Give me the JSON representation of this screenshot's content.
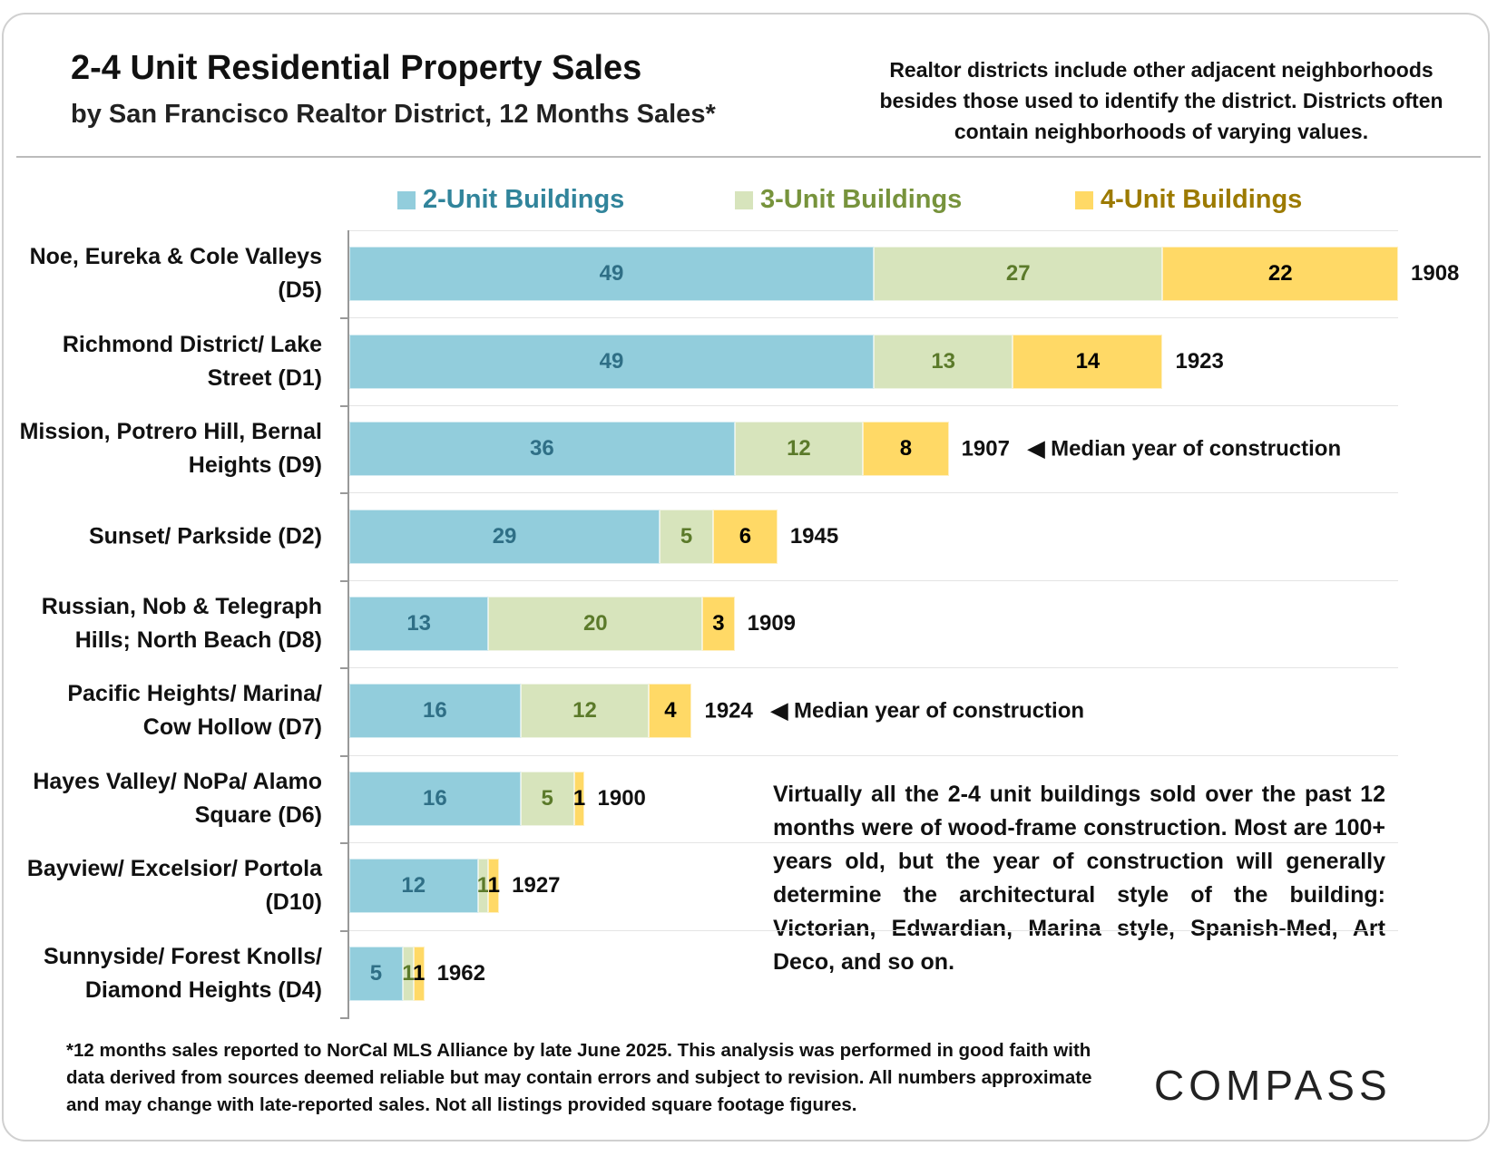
{
  "chart_data": {
    "type": "bar",
    "orientation": "horizontal",
    "stacked": true,
    "title": "2-4 Unit Residential Property Sales",
    "subtitle": "by San Francisco Realtor District, 12 Months Sales*",
    "note": "Realtor districts include other adjacent neighborhoods besides those used to identify the district. Districts often contain neighborhoods of varying values.",
    "categories": [
      "Noe, Eureka & Cole Valleys (D5)",
      "Richmond District/ Lake Street (D1)",
      "Mission, Potrero Hill, Bernal Heights (D9)",
      "Sunset/ Parkside (D2)",
      "Russian, Nob & Telegraph Hills; North Beach (D8)",
      "Pacific Heights/ Marina/ Cow Hollow (D7)",
      "Hayes Valley/ NoPa/ Alamo Square (D6)",
      "Bayview/ Excelsior/ Portola (D10)",
      "Sunnyside/ Forest Knolls/ Diamond Heights (D4)"
    ],
    "series": [
      {
        "name": "2-Unit Buildings",
        "color": "#92cddc",
        "label_color": "#2f6f86",
        "values": [
          49,
          49,
          36,
          29,
          13,
          16,
          16,
          12,
          5
        ]
      },
      {
        "name": "3-Unit Buildings",
        "color": "#d7e4bc",
        "label_color": "#5b7a2a",
        "values": [
          27,
          13,
          12,
          5,
          20,
          12,
          5,
          1,
          1
        ]
      },
      {
        "name": "4-Unit Buildings",
        "color": "#ffd966",
        "label_color": "#000000",
        "values": [
          22,
          14,
          8,
          6,
          3,
          4,
          1,
          1,
          1
        ]
      }
    ],
    "median_years": [
      1908,
      1923,
      1907,
      1945,
      1909,
      1924,
      1900,
      1927,
      1962
    ],
    "median_year_note": "◀ Median year of construction",
    "commentary": "Virtually all the 2-4 unit buildings sold over the past 12 months were of wood-frame construction. Most are 100+ years old, but the year of construction will generally determine the architectural style of the building:  Victorian, Edwardian, Marina style, Spanish-Med, Art Deco, and so on.",
    "footnote": "*12 months sales reported to NorCal MLS Alliance by late June 2025. This analysis was performed in good faith with data derived from sources deemed reliable but may contain errors and subject to revision. All numbers approximate and may change with late-reported sales. Not all listings provided square footage figures.",
    "logo": "COMPASS",
    "legend_colors": [
      "#31849b",
      "#77933c",
      "#9c7a00"
    ]
  }
}
